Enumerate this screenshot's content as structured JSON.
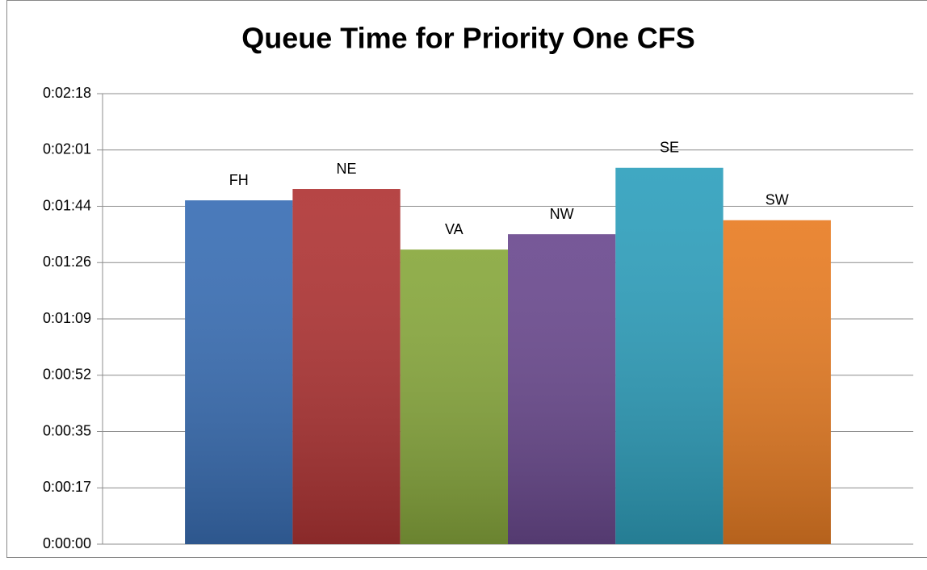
{
  "chart_data": {
    "type": "bar",
    "title": "Queue Time for Priority One CFS",
    "categories": [
      "FH",
      "NE",
      "VA",
      "NW",
      "SE",
      "SW"
    ],
    "values": [
      105.5,
      109,
      90.4,
      95.1,
      115.5,
      99.4
    ],
    "colors": [
      "#3a6fb5",
      "#b03535",
      "#88a83d",
      "#6b4a8f",
      "#2fa0bd",
      "#e87d24"
    ],
    "ylim": [
      0,
      138.24
    ],
    "yticks": [
      {
        "value": 0,
        "label": "0:00:00"
      },
      {
        "value": 17.28,
        "label": "0:00:17"
      },
      {
        "value": 34.56,
        "label": "0:00:35"
      },
      {
        "value": 51.84,
        "label": "0:00:52"
      },
      {
        "value": 69.12,
        "label": "0:01:09"
      },
      {
        "value": 86.4,
        "label": "0:01:26"
      },
      {
        "value": 103.68,
        "label": "0:01:44"
      },
      {
        "value": 120.96,
        "label": "0:02:01"
      },
      {
        "value": 138.24,
        "label": "0:02:18"
      }
    ],
    "grid": true
  }
}
